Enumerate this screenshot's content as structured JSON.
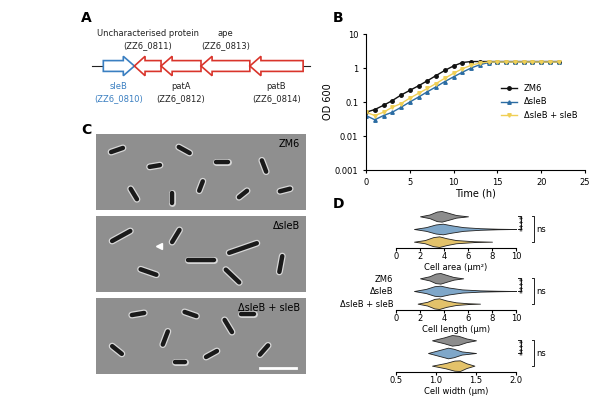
{
  "panel_labels": [
    "A",
    "B",
    "C",
    "D"
  ],
  "diagram": {
    "genes": [
      {
        "name": "sleB",
        "id": "(ZZ6_0810)",
        "direction": "right",
        "color": "#3a7fc1",
        "label_color": "#3a7fc1",
        "label_position": "below"
      },
      {
        "name": "Uncharacterised protein",
        "id": "(ZZ6_0811)",
        "direction": "left",
        "color": "#d9342b",
        "label_color": "#222222",
        "label_position": "above"
      },
      {
        "name": "patA",
        "id": "(ZZ6_0812)",
        "direction": "left",
        "color": "#d9342b",
        "label_color": "#222222",
        "label_position": "below"
      },
      {
        "name": "ape",
        "id": "(ZZ6_0813)",
        "direction": "left",
        "color": "#d9342b",
        "label_color": "#222222",
        "label_position": "above"
      },
      {
        "name": "patB",
        "id": "(ZZ6_0814)",
        "direction": "left",
        "color": "#d9342b",
        "label_color": "#222222",
        "label_position": "below"
      }
    ]
  },
  "micrographs": {
    "panels": [
      "ZM6",
      "ΔsleB",
      "ΔsleB + sleB"
    ]
  },
  "chart_data": [
    {
      "type": "line",
      "x_label": "Time (h)",
      "y_label": "OD 600",
      "x": [
        0,
        1,
        2,
        3,
        4,
        5,
        6,
        7,
        8,
        9,
        10,
        11,
        12,
        13,
        14,
        15,
        16,
        17,
        18,
        19,
        20,
        21,
        22
      ],
      "series": [
        {
          "name": "ZM6",
          "color": "#111111",
          "marker": "circle",
          "line_style": "solid",
          "values": [
            0.05,
            0.06,
            0.08,
            0.11,
            0.16,
            0.22,
            0.3,
            0.42,
            0.6,
            0.85,
            1.15,
            1.45,
            1.55,
            1.55,
            1.55,
            1.55,
            1.55,
            1.55,
            1.55,
            1.55,
            1.55,
            1.55,
            1.55
          ]
        },
        {
          "name": "ΔsleB",
          "color": "#2b6ca3",
          "marker": "triangle",
          "line_style": "solid",
          "values": [
            0.04,
            0.03,
            0.04,
            0.05,
            0.07,
            0.1,
            0.14,
            0.2,
            0.28,
            0.4,
            0.55,
            0.75,
            1.0,
            1.25,
            1.45,
            1.5,
            1.5,
            1.5,
            1.5,
            1.5,
            1.5,
            1.5,
            1.5
          ]
        },
        {
          "name": "ΔsleB + sleB",
          "color": "#f0cf55",
          "marker": "triangle_down",
          "line_style": "solid",
          "values": [
            0.05,
            0.04,
            0.05,
            0.07,
            0.09,
            0.13,
            0.18,
            0.25,
            0.35,
            0.5,
            0.7,
            0.95,
            1.2,
            1.4,
            1.5,
            1.5,
            1.5,
            1.5,
            1.5,
            1.5,
            1.5,
            1.5,
            1.5
          ]
        }
      ],
      "log": "y",
      "xlim": [
        0,
        25
      ],
      "xticks": [
        0,
        5,
        10,
        15,
        20,
        25
      ],
      "ylim": [
        0.001,
        10
      ],
      "yticks": [
        0.001,
        0.01,
        0.1,
        1,
        10
      ],
      "legend": "center right"
    },
    {
      "type": "violin",
      "orientation": "horizontal",
      "x_label": "Cell area (µm²)",
      "categories": [
        null,
        null,
        null
      ],
      "colors": [
        "#8c8c8c",
        "#7fa7c9",
        "#e3c26a"
      ],
      "distributions": [
        {
          "x": [
            2.0,
            2.8,
            3.4,
            3.8,
            4.3,
            5.0,
            6.0
          ],
          "density": [
            0,
            0.35,
            0.9,
            1.0,
            0.7,
            0.25,
            0
          ]
        },
        {
          "x": [
            1.5,
            2.5,
            3.3,
            3.9,
            4.6,
            5.6,
            7.0,
            8.5,
            10.0
          ],
          "density": [
            0,
            0.35,
            0.85,
            1.0,
            0.7,
            0.35,
            0.15,
            0.05,
            0
          ]
        },
        {
          "x": [
            1.5,
            2.4,
            3.1,
            3.6,
            4.2,
            5.0,
            6.5,
            8.0
          ],
          "density": [
            0,
            0.3,
            0.85,
            1.0,
            0.65,
            0.3,
            0.08,
            0
          ]
        }
      ],
      "comparisons": [
        {
          "text": "****",
          "pair": [
            0,
            1
          ]
        },
        {
          "text": "ns",
          "pair": [
            0,
            2
          ]
        }
      ],
      "xlim": [
        0,
        10
      ],
      "xticks": [
        0,
        2,
        4,
        6,
        8,
        10
      ],
      "tick_labels": "x"
    },
    {
      "type": "violin",
      "orientation": "horizontal",
      "x_label": "Cell length (µm)",
      "categories": [
        "ZM6",
        "ΔsleB",
        "ΔsleB + sleB"
      ],
      "colors": [
        "#8c8c8c",
        "#7fa7c9",
        "#e3c26a"
      ],
      "distributions": [
        {
          "x": [
            2.0,
            2.8,
            3.3,
            3.7,
            4.2,
            4.8,
            5.6
          ],
          "density": [
            0,
            0.4,
            0.9,
            1.0,
            0.65,
            0.25,
            0
          ]
        },
        {
          "x": [
            1.5,
            2.5,
            3.2,
            3.7,
            4.4,
            5.5,
            7.0,
            8.5,
            10.0
          ],
          "density": [
            0,
            0.4,
            0.9,
            1.0,
            0.65,
            0.3,
            0.12,
            0.05,
            0
          ]
        },
        {
          "x": [
            1.8,
            2.6,
            3.2,
            3.6,
            4.2,
            5.0,
            6.0,
            7.0
          ],
          "density": [
            0,
            0.35,
            0.9,
            1.0,
            0.6,
            0.25,
            0.08,
            0
          ]
        }
      ],
      "comparisons": [
        {
          "text": "****",
          "pair": [
            0,
            1
          ]
        },
        {
          "text": "ns",
          "pair": [
            0,
            2
          ]
        }
      ],
      "xlim": [
        0,
        10
      ],
      "xticks": [
        0,
        2,
        4,
        6,
        8,
        10
      ]
    },
    {
      "type": "violin",
      "orientation": "horizontal",
      "x_label": "Cell width (µm)",
      "categories": [
        null,
        null,
        null
      ],
      "colors": [
        "#8c8c8c",
        "#7fa7c9",
        "#e3c26a"
      ],
      "distributions": [
        {
          "x": [
            0.95,
            1.1,
            1.2,
            1.28,
            1.38,
            1.5
          ],
          "density": [
            0,
            0.55,
            1.0,
            0.85,
            0.35,
            0
          ]
        },
        {
          "x": [
            0.9,
            1.05,
            1.15,
            1.22,
            1.32,
            1.5
          ],
          "density": [
            0,
            0.6,
            1.0,
            0.8,
            0.3,
            0
          ]
        },
        {
          "x": [
            0.95,
            1.12,
            1.23,
            1.3,
            1.38,
            1.48
          ],
          "density": [
            0,
            0.5,
            0.95,
            1.0,
            0.45,
            0
          ]
        }
      ],
      "comparisons": [
        {
          "text": "****",
          "pair": [
            0,
            1
          ]
        },
        {
          "text": "ns",
          "pair": [
            0,
            2
          ]
        }
      ],
      "xlim": [
        0.5,
        2.0
      ],
      "xticks": [
        0.5,
        {
          "value": 1.0,
          "label": "1.0"
        },
        1.5,
        {
          "value": 2.0,
          "label": "2.0"
        }
      ],
      "tick_labels": "x"
    }
  ]
}
